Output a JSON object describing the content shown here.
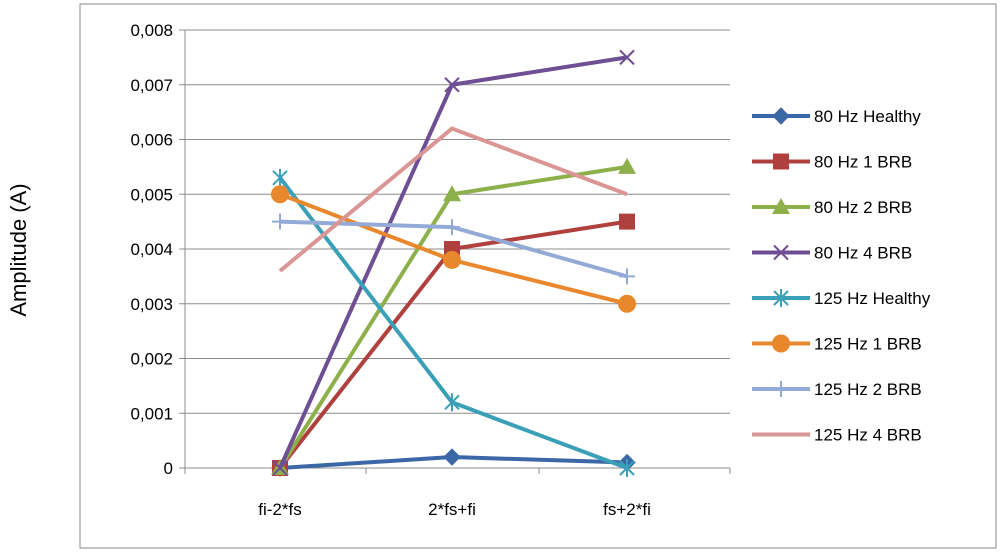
{
  "chart_data": {
    "type": "line",
    "title": "",
    "xlabel": "",
    "ylabel": "Amplitude (A)",
    "categories": [
      "fi-2*fs",
      "2*fs+fi",
      "fs+2*fi"
    ],
    "ylim": [
      0,
      0.008
    ],
    "yticks": [
      0,
      0.001,
      0.002,
      0.003,
      0.004,
      0.005,
      0.006,
      0.007,
      0.008
    ],
    "ytick_labels": [
      "0",
      "0,001",
      "0,002",
      "0,003",
      "0,004",
      "0,005",
      "0,006",
      "0,007",
      "0,008"
    ],
    "grid": "horizontal",
    "legend_position": "right",
    "series": [
      {
        "name": "80 Hz Healthy",
        "values": [
          0,
          0.0002,
          0.0001
        ],
        "color": "#3c67a6",
        "marker": "diamond"
      },
      {
        "name": "80 Hz 1 BRB",
        "values": [
          0,
          0.004,
          0.0045
        ],
        "color": "#b0403d",
        "marker": "square"
      },
      {
        "name": "80 Hz 2 BRB",
        "values": [
          0,
          0.005,
          0.0055
        ],
        "color": "#8db04b",
        "marker": "triangle"
      },
      {
        "name": "80 Hz 4 BRB",
        "values": [
          0,
          0.007,
          0.0075
        ],
        "color": "#6f4f93",
        "marker": "x"
      },
      {
        "name": "125 Hz Healthy",
        "values": [
          0.0053,
          0.0012,
          0
        ],
        "color": "#3aa0b8",
        "marker": "asterisk"
      },
      {
        "name": "125 Hz 1 BRB",
        "values": [
          0.005,
          0.0038,
          0.003
        ],
        "color": "#e8872c",
        "marker": "circle"
      },
      {
        "name": "125 Hz 2 BRB",
        "values": [
          0.0045,
          0.0044,
          0.0035
        ],
        "color": "#93aad6",
        "marker": "plus"
      },
      {
        "name": "125 Hz 4 BRB",
        "values": [
          0.0036,
          0.0062,
          0.005
        ],
        "color": "#d99694",
        "marker": "none"
      }
    ]
  }
}
